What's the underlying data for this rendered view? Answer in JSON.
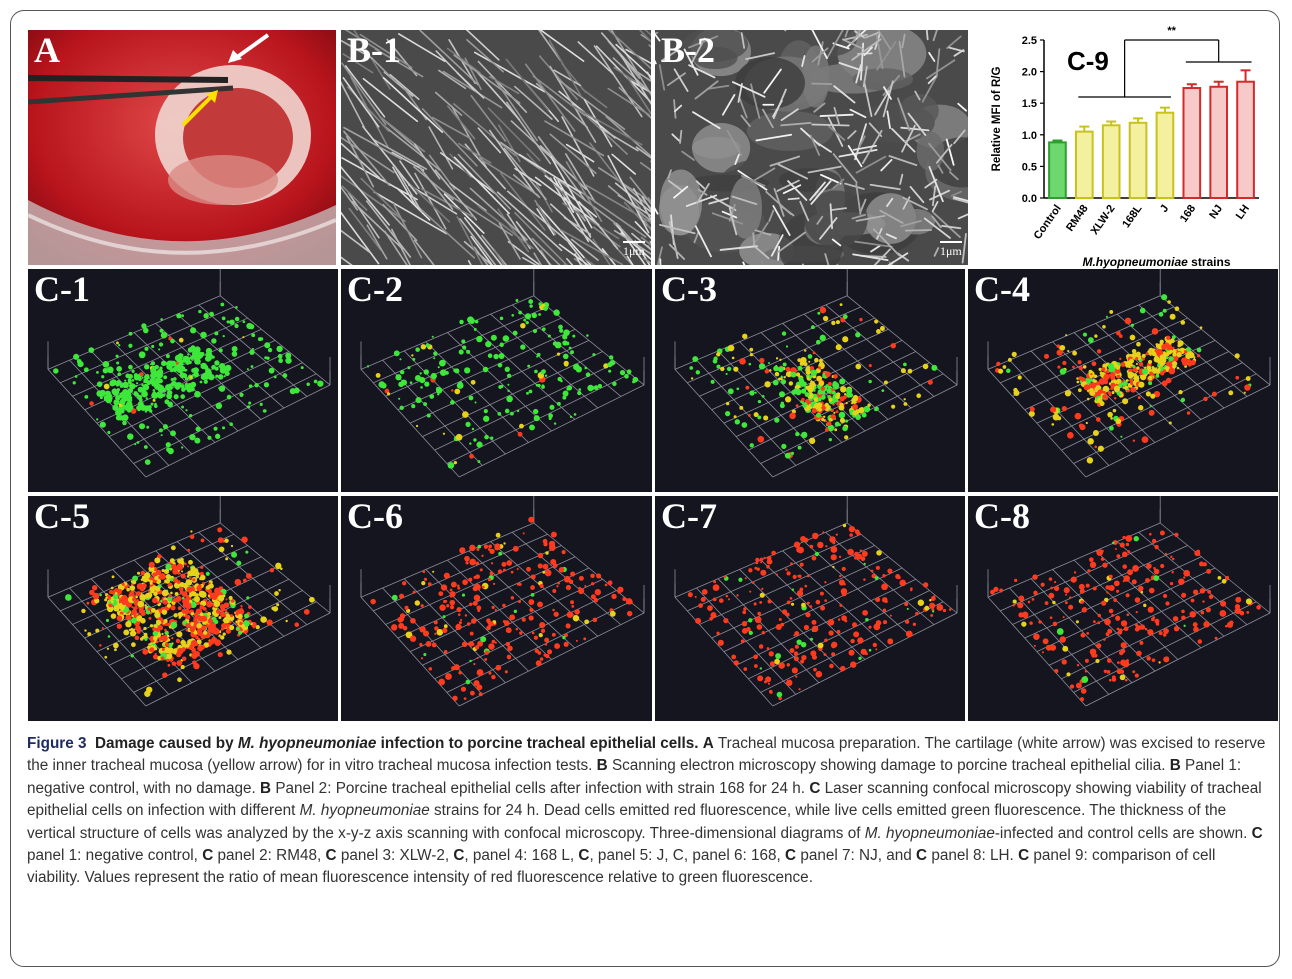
{
  "panels": {
    "A": "A",
    "B1": "B-1",
    "B2": "B-2",
    "C9": "C-9",
    "C1": "C-1",
    "C2": "C-2",
    "C3": "C-3",
    "C4": "C-4",
    "C5": "C-5",
    "C6": "C-6",
    "C7": "C-7",
    "C8": "C-8"
  },
  "scale_bar": "1μm",
  "chart_data": {
    "type": "bar",
    "title": "C-9",
    "categories": [
      "Control",
      "RM48",
      "XLW-2",
      "168L",
      "J",
      "168",
      "NJ",
      "LH"
    ],
    "values": [
      0.88,
      1.05,
      1.15,
      1.19,
      1.35,
      1.74,
      1.76,
      1.84
    ],
    "errors": [
      0.03,
      0.08,
      0.06,
      0.07,
      0.08,
      0.06,
      0.08,
      0.18
    ],
    "bar_colors": [
      "#6dd86d",
      "#f3f0a0",
      "#f3f0a0",
      "#f3f0a0",
      "#f3f0a0",
      "#f8c9c9",
      "#f8c9c9",
      "#f8c9c9"
    ],
    "edge_colors": [
      "#2e9e2e",
      "#c8c21c",
      "#c8c21c",
      "#c8c21c",
      "#c8c21c",
      "#d42a2a",
      "#d42a2a",
      "#d42a2a"
    ],
    "ylabel": "Relative MFI of R/G",
    "xlabel_italic": "M.hyopneumoniae",
    "xlabel_rest": "strains",
    "ylim": [
      0,
      2.5
    ],
    "yticks": [
      "0.0",
      "0.5",
      "1.0",
      "1.5",
      "2.0",
      "2.5"
    ],
    "significance": "**"
  },
  "caption": {
    "fig_label": "Figure 3",
    "title_a": "Damage caused by",
    "title_italic": "M. hyopneumoniae",
    "title_b": "infection to porcine tracheal epithelial cells.",
    "sA_label": "A",
    "sA": "Tracheal mucosa preparation. The cartilage (white arrow) was excised to reserve the inner tracheal mucosa (yellow arrow) for in vitro tracheal mucosa infection tests.",
    "sB_label": "B",
    "sB": "Scanning electron microscopy showing damage to porcine tracheal epithelial cilia.",
    "sB1_label": "B",
    "sB1": "Panel 1: negative control, with no damage.",
    "sB2_label": "B",
    "sB2": "Panel 2: Porcine tracheal epithelial cells after infection with strain 168 for 24 h.",
    "sC_label": "C",
    "sC_a": "Laser scanning confocal microscopy showing viability of tracheal epithelial cells on infection with different",
    "sC_italic": "M. hyopneumoniae",
    "sC_b": "strains for 24 h. Dead cells emitted red fluorescence, while live cells emitted green fluorescence. The thickness of the vertical structure of cells was analyzed by the x-y-z axis scanning with confocal microscopy. Three-dimensional diagrams of",
    "sC_italic2": "M. hyopneumoniae",
    "sC_c": "-infected and control cells are shown.",
    "c1_label": "C",
    "c1": "panel 1: negative control,",
    "c2_label": "C",
    "c2": "panel 2: RM48,",
    "c3_label": "C",
    "c3": "panel 3: XLW-2,",
    "c4_label": "C",
    "c4": ", panel 4: 168 L,",
    "c5_label": "C",
    "c5": ", panel 5: J, C, panel 6: 168,",
    "c7_label": "C",
    "c7": "panel 7: NJ, and",
    "c8_label": "C",
    "c8": "panel 8: LH.",
    "c9_label": "C",
    "c9": "panel 9: comparison of cell viability. Values represent the ratio of mean fluorescence intensity of red fluorescence relative to green fluorescence."
  }
}
